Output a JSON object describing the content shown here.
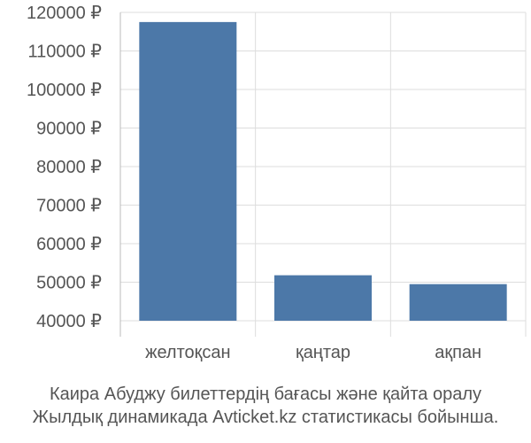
{
  "chart_data": {
    "type": "bar",
    "categories": [
      "желтоқсан",
      "қаңтар",
      "ақпан"
    ],
    "values": [
      117500,
      51800,
      49500
    ],
    "ylim": [
      40000,
      120000
    ],
    "yticks": [
      40000,
      50000,
      60000,
      70000,
      80000,
      90000,
      100000,
      110000,
      120000
    ],
    "ytick_labels": [
      "40000 ₽",
      "50000 ₽",
      "60000 ₽",
      "70000 ₽",
      "80000 ₽",
      "90000 ₽",
      "100000 ₽",
      "110000 ₽",
      "120000 ₽"
    ],
    "bar_color": "#4c78a8",
    "grid": true,
    "legend": "none"
  },
  "caption": {
    "line1": "Каира Абуджу билеттердің бағасы және қайта оралу",
    "line2": "Жылдық динамикада Avticket.kz статистикасы бойынша."
  }
}
